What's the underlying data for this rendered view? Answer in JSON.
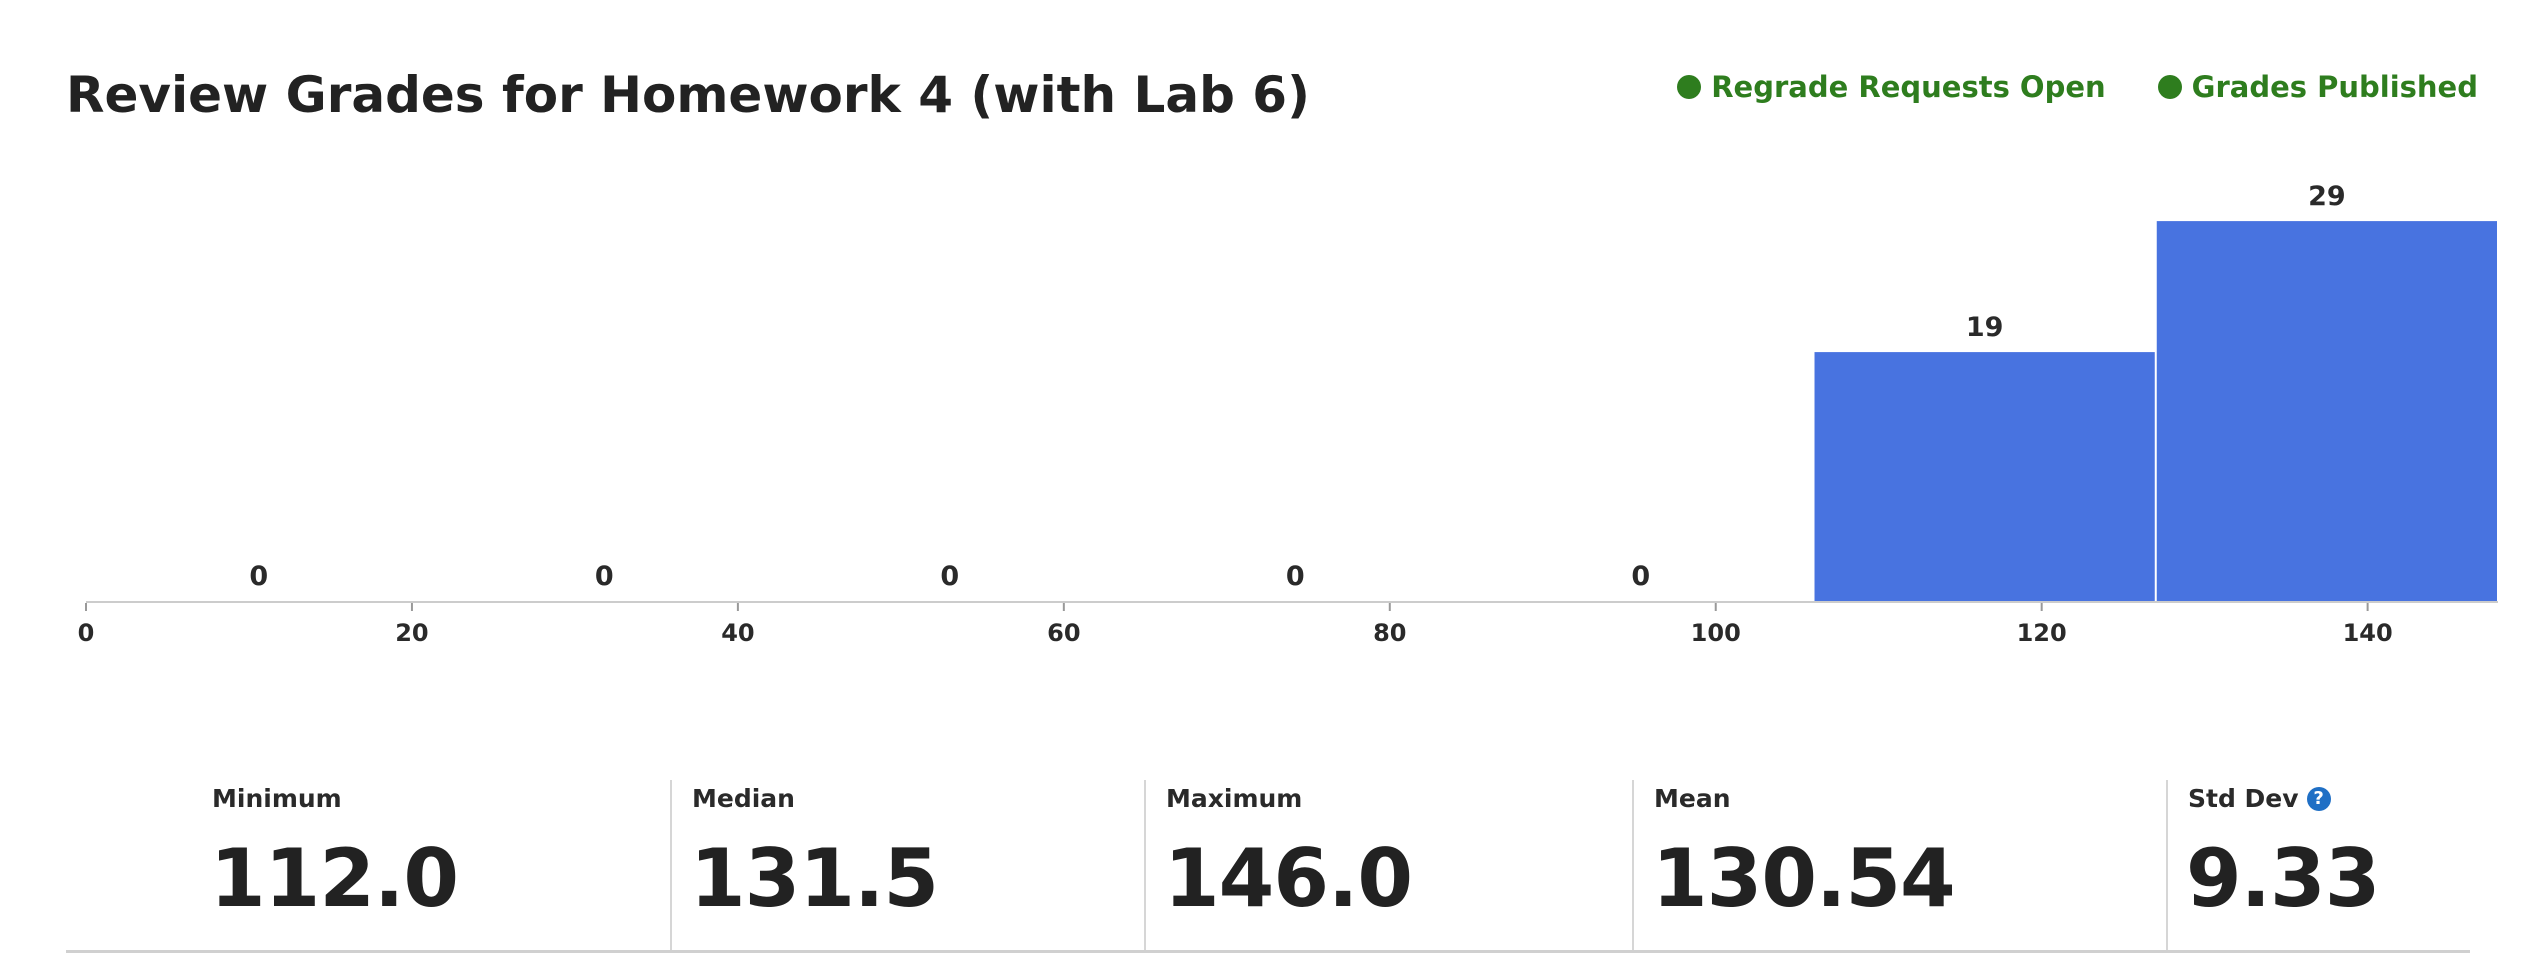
{
  "page": {
    "title": "Review Grades for Homework 4 (with Lab 6)"
  },
  "status": [
    {
      "label": "Regrade Requests Open",
      "color": "#2e7d1e"
    },
    {
      "label": "Grades Published",
      "color": "#2e7d1e"
    }
  ],
  "chart_data": {
    "type": "bar",
    "bins": [
      {
        "start": 0,
        "end": 21.2,
        "count": 0
      },
      {
        "start": 21.2,
        "end": 42.4,
        "count": 0
      },
      {
        "start": 42.4,
        "end": 63.6,
        "count": 0
      },
      {
        "start": 63.6,
        "end": 84.8,
        "count": 0
      },
      {
        "start": 84.8,
        "end": 106.0,
        "count": 0
      },
      {
        "start": 106.0,
        "end": 127.0,
        "count": 19
      },
      {
        "start": 127.0,
        "end": 148.0,
        "count": 29
      }
    ],
    "xticks": [
      0,
      20,
      40,
      60,
      80,
      100,
      120,
      140
    ],
    "xlim": [
      0,
      148
    ],
    "bar_color": "#4873e0",
    "grid": false,
    "xlabel": "",
    "ylabel": ""
  },
  "stats": [
    {
      "label": "Minimum",
      "value": "112.0"
    },
    {
      "label": "Median",
      "value": "131.5"
    },
    {
      "label": "Maximum",
      "value": "146.0"
    },
    {
      "label": "Mean",
      "value": "130.54"
    },
    {
      "label": "Std Dev",
      "value": "9.33",
      "help_icon": "question-circle-icon",
      "help_glyph": "?"
    }
  ]
}
